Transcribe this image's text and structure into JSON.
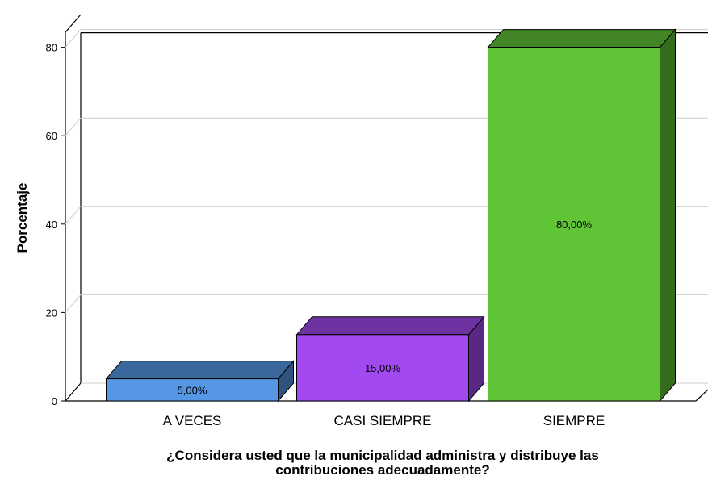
{
  "chart_data": {
    "type": "bar",
    "categories": [
      "A VECES",
      "CASI SIEMPRE",
      "SIEMPRE"
    ],
    "values": [
      5,
      15,
      80
    ],
    "data_labels": [
      "5,00%",
      "15,00%",
      "80,00%"
    ],
    "colors": [
      "#5597e5",
      "#a349f0",
      "#5fc436"
    ],
    "ylabel": "Porcentaje",
    "xlabel_lines": [
      "¿Considera usted que la municipalidad administra y distribuye las",
      "contribuciones adecuadamente?"
    ],
    "ylim": [
      0,
      80
    ],
    "yticks": [
      0,
      20,
      40,
      60,
      80
    ],
    "grid": true,
    "style": "3d"
  }
}
